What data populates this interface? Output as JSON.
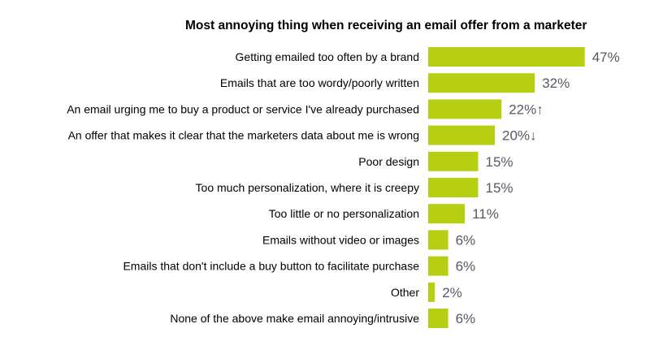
{
  "chart_data": {
    "type": "bar",
    "orientation": "horizontal",
    "title": "Most annoying thing when receiving an email offer from a marketer",
    "categories": [
      "Getting emailed too often by a brand",
      "Emails that are too wordy/poorly written",
      "An email urging me to buy a product or service I've already purchased",
      "An offer that makes it clear that the marketers data about me is wrong",
      "Poor design",
      "Too much personalization, where it is creepy",
      "Too little or no personalization",
      "Emails without video or images",
      "Emails that don't include a buy button to facilitate purchase",
      "Other",
      "None of the above make email annoying/intrusive"
    ],
    "values": [
      47,
      32,
      22,
      20,
      15,
      15,
      11,
      6,
      6,
      2,
      6
    ],
    "value_labels": [
      "47%",
      "32%",
      "22%↑",
      "20%↓",
      "15%",
      "15%",
      "11%",
      "6%",
      "6%",
      "2%",
      "6%"
    ],
    "bar_color": "#b7cf12",
    "value_label_color": "#555a60",
    "xlim": [
      0,
      50
    ],
    "grid": false,
    "legend": "none"
  }
}
